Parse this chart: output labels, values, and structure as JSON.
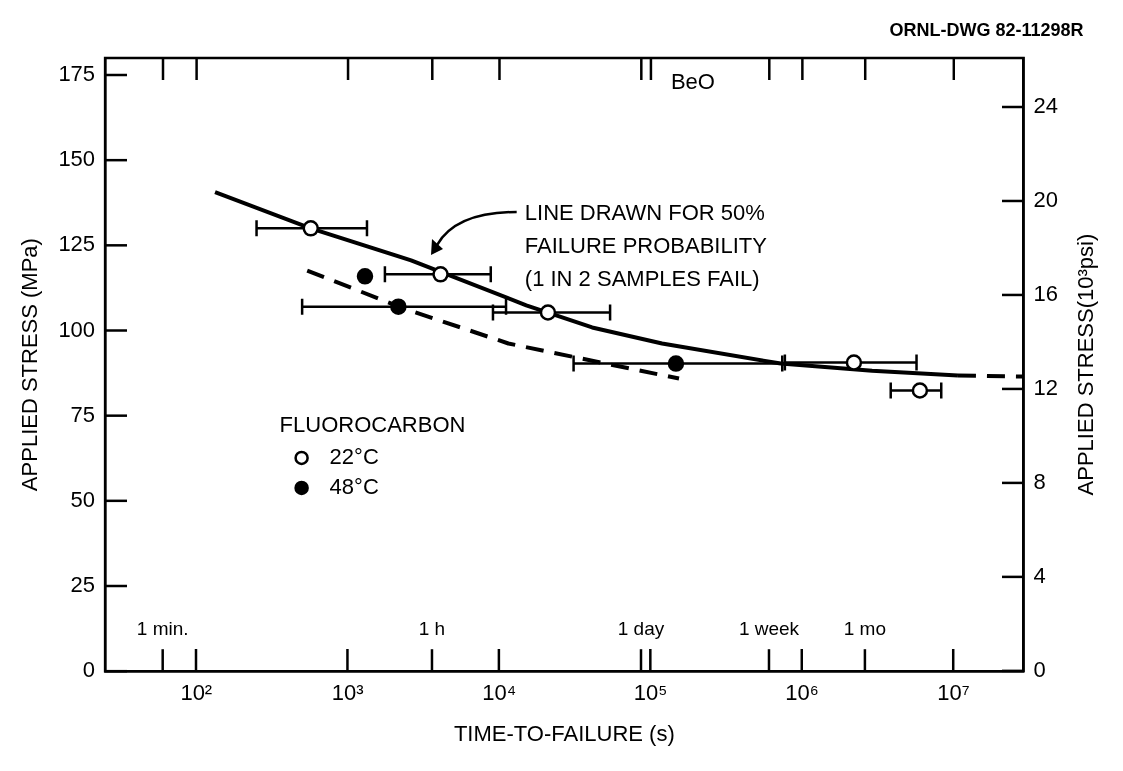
{
  "chart_data": {
    "type": "scatter",
    "title": "BeO",
    "xlabel": "TIME-TO-FAILURE (s)",
    "ylabel": "APPLIED STRESS (MPa)",
    "y2label": "APPLIED STRESS(10³psi)",
    "legend_title": "FLUOROCARBON",
    "legend": "bottom left",
    "log": "x",
    "grid": false,
    "xlim": [
      25,
      29000000.0
    ],
    "xticks": [
      {
        "value": 100,
        "label": "10²"
      },
      {
        "value": 1000,
        "label": "10³"
      },
      {
        "value": 10000,
        "label": "10⁴"
      },
      {
        "value": 100000,
        "label": "10⁵"
      },
      {
        "value": 1000000,
        "label": "10⁶"
      },
      {
        "value": 10000000,
        "label": "10⁷"
      }
    ],
    "ref_lines": [
      {
        "axis": "x",
        "value": 60,
        "label": "1 min."
      },
      {
        "axis": "x",
        "value": 3600,
        "label": "1 h"
      },
      {
        "axis": "x",
        "value": 86400,
        "label": "1 day"
      },
      {
        "axis": "x",
        "value": 604800,
        "label": "1 week"
      },
      {
        "axis": "x",
        "value": 2600000,
        "label": "1 mo"
      }
    ],
    "ylim": [
      0,
      180
    ],
    "yticks": [
      0,
      25,
      50,
      75,
      100,
      125,
      150,
      175
    ],
    "y2lim": [
      0,
      26.1
    ],
    "y2ticks": [
      0,
      4,
      8,
      12,
      16,
      20,
      24
    ],
    "annotations": [
      "ORNL-DWG 82-11298R",
      "LINE DRAWN FOR 50%\nFAILURE PROBABILITY\n(1 IN 2 SAMPLES FAIL)"
    ],
    "series": [
      {
        "name": "22°C",
        "marker": "circle",
        "color": "#ffffff",
        "x": [
          570,
          4100,
          21000,
          2200000,
          6000000
        ],
        "values": [
          130,
          116.5,
          105.3,
          90.6,
          82.4
        ],
        "xerrors": [
          [
            250,
            1340
          ],
          [
            1760,
            8800
          ],
          [
            9100,
            54000
          ],
          [
            770000,
            5700000
          ],
          [
            3850000,
            8300000
          ]
        ]
      },
      {
        "name": "48°C",
        "marker": "circle",
        "color": "#000000",
        "x": [
          1300,
          2160,
          147000
        ],
        "values": [
          115.9,
          107,
          90.3
        ],
        "xerrors": [
          null,
          [
            500,
            11100
          ],
          [
            31000,
            740000
          ]
        ]
      },
      {
        "type": "line",
        "line_style": "solid",
        "color": "#000000",
        "x": [
          133,
          570,
          2620,
          15100,
          41100,
          119000,
          723000,
          2900000,
          10700000
        ],
        "values": [
          140.6,
          130,
          120.6,
          107.4,
          100.9,
          96.2,
          90.3,
          88.2,
          86.8
        ]
      },
      {
        "type": "line",
        "line_style": "dashed",
        "color": "#000000",
        "x": [
          10700000,
          29000000
        ],
        "values": [
          86.8,
          86.5
        ]
      },
      {
        "type": "line",
        "line_style": "dashed",
        "color": "#000000",
        "x": [
          540,
          2340,
          11500,
          50600,
          154000
        ],
        "values": [
          117.6,
          106.5,
          96.2,
          90.3,
          85.9
        ]
      }
    ]
  }
}
